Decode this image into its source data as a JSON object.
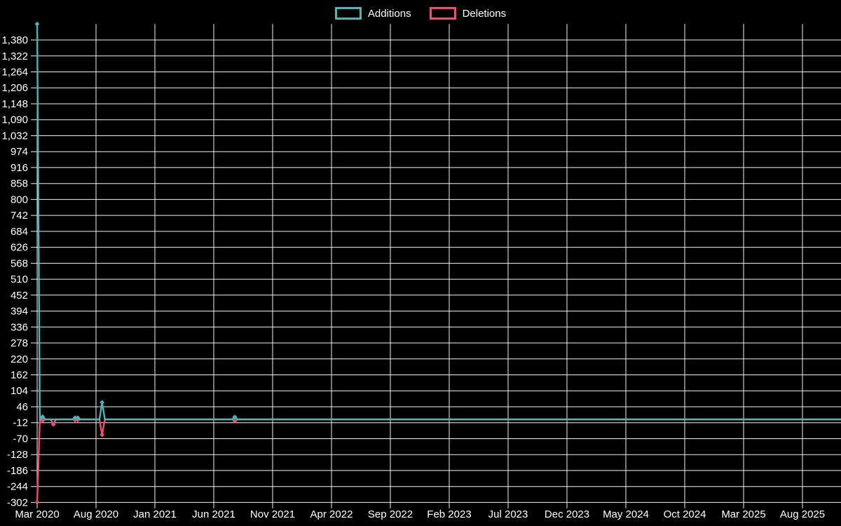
{
  "page": {
    "background": "#000000",
    "text_color": "#ffffff",
    "grid_color": "#f2f2f2"
  },
  "legend": {
    "position": "top-center",
    "items": [
      "Additions",
      "Deletions"
    ]
  },
  "chart_data": {
    "type": "line",
    "title": "",
    "grid": true,
    "legend_position": "top-center",
    "background": "#000000",
    "colors": {
      "grid": "#f2f2f2",
      "text": "#ffffff",
      "additions": "#4cb5b5",
      "deletions": "#ee4f71"
    },
    "x_axis": {
      "kind": "time",
      "start_date": "2020-03-01",
      "end_date": "2025-11-23",
      "sampling": "weekly",
      "tick_interval_months": 5,
      "tick_labels": [
        "Mar 2020",
        "Aug 2020",
        "Jan 2021",
        "Jun 2021",
        "Nov 2021",
        "Apr 2022",
        "Sep 2022",
        "Feb 2023",
        "Jul 2023",
        "Dec 2023",
        "May 2024",
        "Oct 2024",
        "Mar 2025",
        "Aug 2025"
      ]
    },
    "y_axis": {
      "min": -302,
      "max": 1438,
      "tick_step": 58,
      "tick_values": [
        1380,
        1322,
        1264,
        1206,
        1148,
        1090,
        1032,
        974,
        916,
        858,
        800,
        742,
        684,
        626,
        568,
        510,
        452,
        394,
        336,
        278,
        220,
        162,
        104,
        46,
        -12,
        -70,
        -128,
        -186,
        -244,
        -302
      ]
    },
    "series": [
      {
        "name": "Additions",
        "key": "additions",
        "color": "#4cb5b5"
      },
      {
        "name": "Deletions",
        "key": "deletions",
        "color": "#ee4f71"
      }
    ],
    "baseline_value": 0,
    "events": [
      {
        "date": "2020-03-01",
        "additions": 1438,
        "deletions": -302
      },
      {
        "date": "2020-03-15",
        "additions": 10,
        "deletions": -4
      },
      {
        "date": "2020-04-12",
        "additions": 0,
        "deletions": -18
      },
      {
        "date": "2020-06-07",
        "additions": 6,
        "deletions": -2
      },
      {
        "date": "2020-06-14",
        "additions": 6,
        "deletions": -2
      },
      {
        "date": "2020-08-16",
        "additions": 62,
        "deletions": -56
      },
      {
        "date": "2021-07-25",
        "additions": 9,
        "deletions": -5
      }
    ],
    "note": "All other weekly values are 0 for both series."
  }
}
